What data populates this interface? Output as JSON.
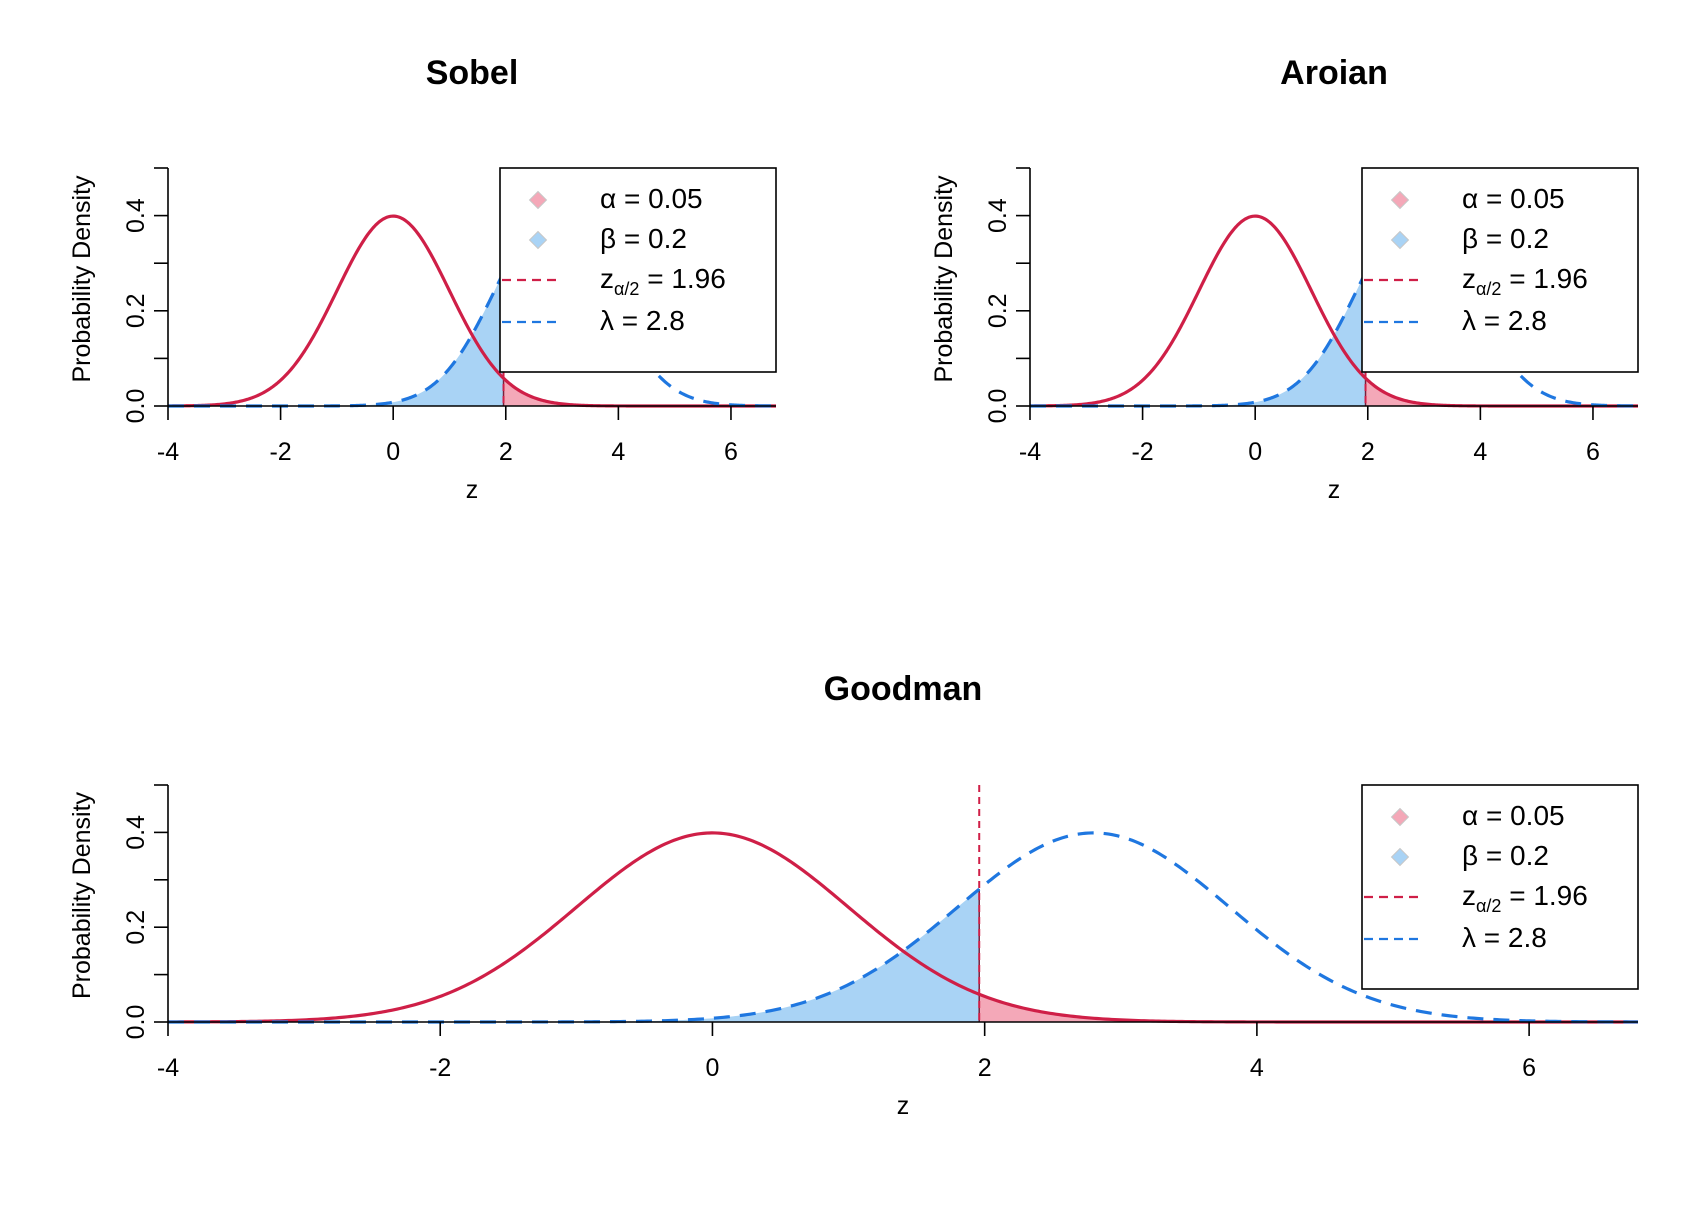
{
  "figure": {
    "background": "#ffffff",
    "colors": {
      "null_curve": "#cf1f47",
      "alt_curve": "#1f77e0",
      "alpha_fill": "#f4a8b8",
      "beta_fill": "#a9d3f5",
      "axis": "#000000"
    }
  },
  "chart_data": [
    {
      "type": "line",
      "title": "Sobel",
      "xlabel": "z",
      "ylabel": "Probability Density",
      "xlim": [
        -4,
        6.8
      ],
      "ylim": [
        0,
        0.5
      ],
      "x_ticks": [
        -4,
        -2,
        0,
        2,
        4,
        6
      ],
      "x_tick_labels": [
        "-4",
        "-2",
        "0",
        "2",
        "4",
        "6"
      ],
      "y_ticks": [
        0.0,
        0.2,
        0.4
      ],
      "y_tick_labels": [
        "0.0",
        "0.2",
        "0.4"
      ],
      "grid": false,
      "legend_position": "top-right",
      "series": [
        {
          "kind": "normal_density",
          "mean": 0,
          "sd": 1,
          "style": "solid",
          "color": "#cf1f47"
        },
        {
          "kind": "normal_density",
          "mean": 2.8,
          "sd": 1,
          "style": "dashed",
          "color": "#1f77e0"
        }
      ],
      "critical_value": 1.96,
      "shaded": [
        {
          "region": "alpha",
          "x_from": 1.96,
          "x_to": 6.8,
          "under": "null",
          "color": "#f4a8b8"
        },
        {
          "region": "beta",
          "x_from": -4,
          "x_to": 1.96,
          "under": "alternative",
          "color": "#a9d3f5"
        }
      ],
      "legend": [
        {
          "symbol": "point",
          "color": "#f4a8b8",
          "text": "α = 0.05"
        },
        {
          "symbol": "point",
          "color": "#a9d3f5",
          "text": "β = 0.2"
        },
        {
          "symbol": "dashed-line",
          "color": "#cf1f47",
          "text_main": "z",
          "text_sub": "α/2",
          "text_rest": " = 1.96"
        },
        {
          "symbol": "dashed-line",
          "color": "#1f77e0",
          "text": "λ = 2.8"
        }
      ]
    },
    {
      "type": "line",
      "title": "Aroian",
      "xlabel": "z",
      "ylabel": "Probability Density",
      "xlim": [
        -4,
        6.8
      ],
      "ylim": [
        0,
        0.5
      ],
      "x_ticks": [
        -4,
        -2,
        0,
        2,
        4,
        6
      ],
      "x_tick_labels": [
        "-4",
        "-2",
        "0",
        "2",
        "4",
        "6"
      ],
      "y_ticks": [
        0.0,
        0.2,
        0.4
      ],
      "y_tick_labels": [
        "0.0",
        "0.2",
        "0.4"
      ],
      "grid": false,
      "legend_position": "top-right",
      "series": [
        {
          "kind": "normal_density",
          "mean": 0,
          "sd": 1,
          "style": "solid",
          "color": "#cf1f47"
        },
        {
          "kind": "normal_density",
          "mean": 2.8,
          "sd": 1,
          "style": "dashed",
          "color": "#1f77e0"
        }
      ],
      "critical_value": 1.96,
      "shaded": [
        {
          "region": "alpha",
          "x_from": 1.96,
          "x_to": 6.8,
          "under": "null",
          "color": "#f4a8b8"
        },
        {
          "region": "beta",
          "x_from": -4,
          "x_to": 1.96,
          "under": "alternative",
          "color": "#a9d3f5"
        }
      ],
      "legend": [
        {
          "symbol": "point",
          "color": "#f4a8b8",
          "text": "α = 0.05"
        },
        {
          "symbol": "point",
          "color": "#a9d3f5",
          "text": "β = 0.2"
        },
        {
          "symbol": "dashed-line",
          "color": "#cf1f47",
          "text_main": "z",
          "text_sub": "α/2",
          "text_rest": " = 1.96"
        },
        {
          "symbol": "dashed-line",
          "color": "#1f77e0",
          "text": "λ = 2.8"
        }
      ]
    },
    {
      "type": "line",
      "title": "Goodman",
      "xlabel": "z",
      "ylabel": "Probability Density",
      "xlim": [
        -4,
        6.8
      ],
      "ylim": [
        0,
        0.5
      ],
      "x_ticks": [
        -4,
        -2,
        0,
        2,
        4,
        6
      ],
      "x_tick_labels": [
        "-4",
        "-2",
        "0",
        "2",
        "4",
        "6"
      ],
      "y_ticks": [
        0.0,
        0.2,
        0.4
      ],
      "y_tick_labels": [
        "0.0",
        "0.2",
        "0.4"
      ],
      "grid": false,
      "legend_position": "top-right",
      "series": [
        {
          "kind": "normal_density",
          "mean": 0,
          "sd": 1,
          "style": "solid",
          "color": "#cf1f47"
        },
        {
          "kind": "normal_density",
          "mean": 2.8,
          "sd": 1,
          "style": "dashed",
          "color": "#1f77e0"
        }
      ],
      "critical_value": 1.96,
      "shaded": [
        {
          "region": "alpha",
          "x_from": 1.96,
          "x_to": 6.8,
          "under": "null",
          "color": "#f4a8b8"
        },
        {
          "region": "beta",
          "x_from": -4,
          "x_to": 1.96,
          "under": "alternative",
          "color": "#a9d3f5"
        }
      ],
      "legend": [
        {
          "symbol": "point",
          "color": "#f4a8b8",
          "text": "α = 0.05"
        },
        {
          "symbol": "point",
          "color": "#a9d3f5",
          "text": "β = 0.2"
        },
        {
          "symbol": "dashed-line",
          "color": "#cf1f47",
          "text_main": "z",
          "text_sub": "α/2",
          "text_rest": " = 1.96"
        },
        {
          "symbol": "dashed-line",
          "color": "#1f77e0",
          "text": "λ = 2.8"
        }
      ]
    }
  ]
}
